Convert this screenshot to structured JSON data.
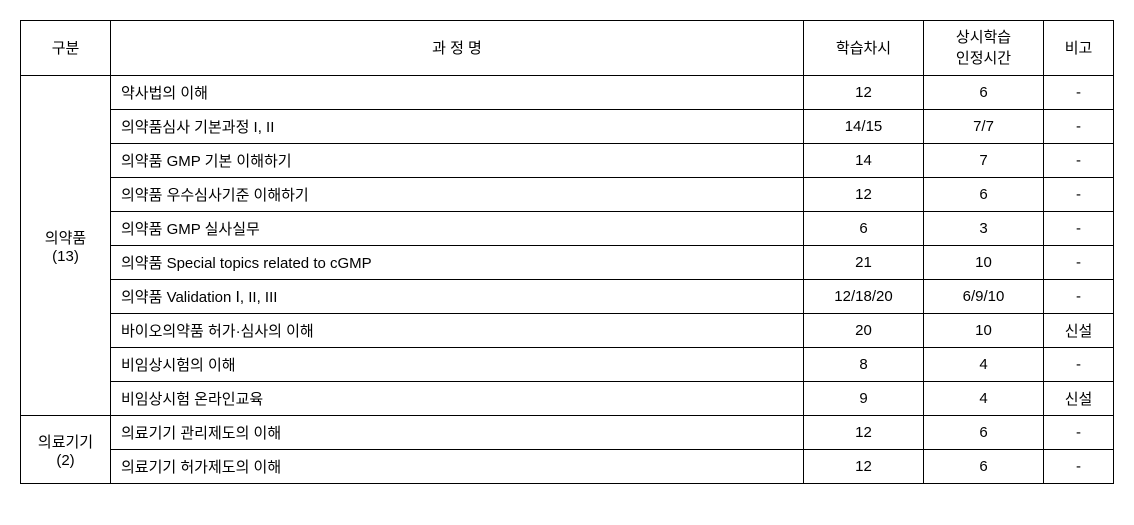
{
  "headers": {
    "category": "구분",
    "course": "과 정 명",
    "hours": "학습차시",
    "credit_line1": "상시학습",
    "credit_line2": "인정시간",
    "note": "비고"
  },
  "categories": [
    {
      "label": "의약품",
      "count": "(13)",
      "rowspan": 10,
      "rows": [
        {
          "course": "약사법의 이해",
          "hours": "12",
          "credit": "6",
          "note": "-"
        },
        {
          "course": "의약품심사 기본과정 I, II",
          "hours": "14/15",
          "credit": "7/7",
          "note": "-"
        },
        {
          "course": "의약품 GMP 기본 이해하기",
          "hours": "14",
          "credit": "7",
          "note": "-"
        },
        {
          "course": "의약품 우수심사기준 이해하기",
          "hours": "12",
          "credit": "6",
          "note": "-"
        },
        {
          "course": "의약품 GMP 실사실무",
          "hours": "6",
          "credit": "3",
          "note": "-"
        },
        {
          "course": "의약품 Special topics related to cGMP",
          "hours": "21",
          "credit": "10",
          "note": "-"
        },
        {
          "course": "의약품 Validation Ⅰ, II, III",
          "hours": "12/18/20",
          "credit": "6/9/10",
          "note": "-"
        },
        {
          "course": "바이오의약품 허가·심사의 이해",
          "hours": "20",
          "credit": "10",
          "note": "신설"
        },
        {
          "course": "비임상시험의 이해",
          "hours": "8",
          "credit": "4",
          "note": "-"
        },
        {
          "course": "비임상시험 온라인교육",
          "hours": "9",
          "credit": "4",
          "note": "신설"
        }
      ]
    },
    {
      "label": "의료기기",
      "count": "(2)",
      "rowspan": 2,
      "rows": [
        {
          "course": "의료기기 관리제도의 이해",
          "hours": "12",
          "credit": "6",
          "note": "-"
        },
        {
          "course": "의료기기 허가제도의 이해",
          "hours": "12",
          "credit": "6",
          "note": "-"
        }
      ]
    }
  ]
}
